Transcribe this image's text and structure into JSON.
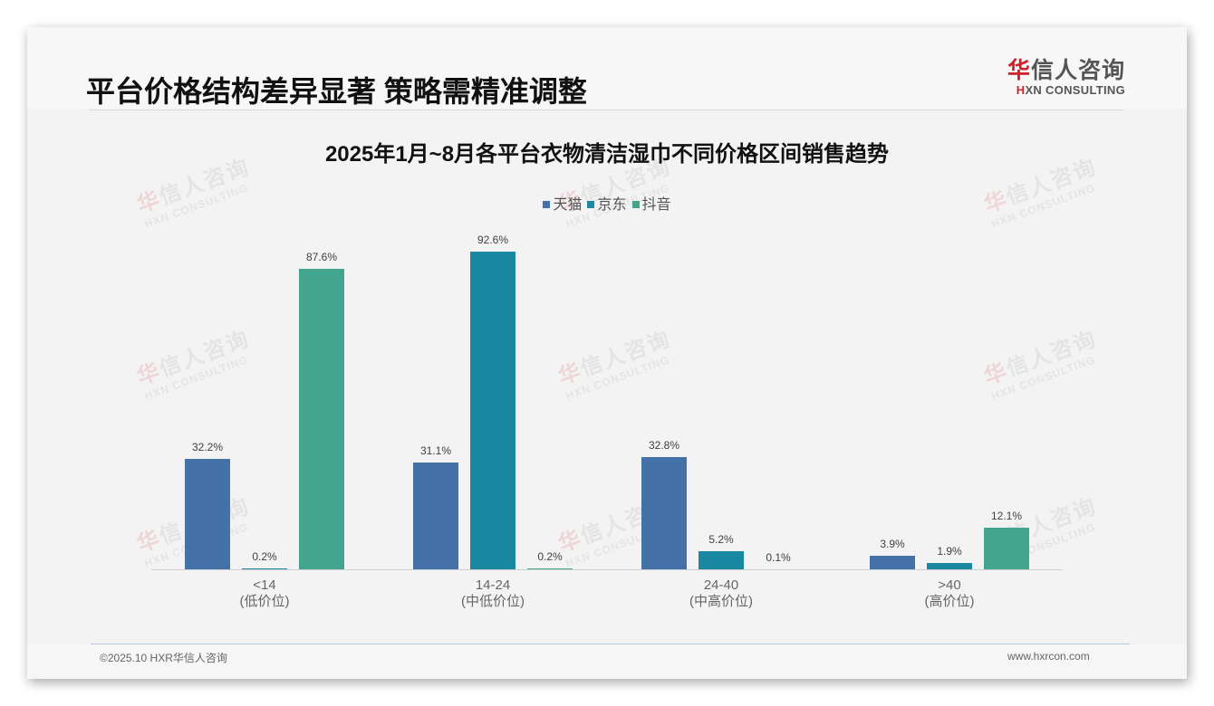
{
  "header": {
    "title": "平台价格结构差异显著 策略需精准调整",
    "logo": {
      "cn_red": "华",
      "cn_rest": "信人咨询",
      "en_red": "H",
      "en_rest": "XN CONSULTING"
    }
  },
  "watermark": {
    "cn_red": "华",
    "cn_rest": "信人咨询",
    "en": "HXN CONSULTING"
  },
  "footer": {
    "copyright": "©2025.10 HXR华信人咨询",
    "website": "www.hxrcon.com"
  },
  "colors": {
    "tmall": "#4472a8",
    "jd": "#1a88a0",
    "douyin": "#43a590"
  },
  "chart_data": {
    "type": "bar",
    "title": "2025年1月~8月各平台衣物清洁湿巾不同价格区间销售趋势",
    "xlabel": "",
    "ylabel": "",
    "legend_position": "top",
    "grid": false,
    "categories": [
      "<14",
      "14-24",
      "24-40",
      ">40"
    ],
    "category_sublabels": [
      "(低价位)",
      "(中低价位)",
      "(中高价位)",
      "(高价位)"
    ],
    "series": [
      {
        "name": "天猫",
        "values": [
          32.2,
          31.1,
          32.8,
          3.9
        ],
        "labels": [
          "32.2%",
          "31.1%",
          "32.8%",
          "3.9%"
        ]
      },
      {
        "name": "京东",
        "values": [
          0.2,
          92.6,
          5.2,
          1.9
        ],
        "labels": [
          "0.2%",
          "92.6%",
          "5.2%",
          "1.9%"
        ]
      },
      {
        "name": "抖音",
        "values": [
          87.6,
          0.2,
          0.1,
          12.1
        ],
        "labels": [
          "87.6%",
          "0.2%",
          "0.1%",
          "12.1%"
        ]
      }
    ],
    "unit": "%",
    "ylim": [
      0,
      100
    ]
  }
}
